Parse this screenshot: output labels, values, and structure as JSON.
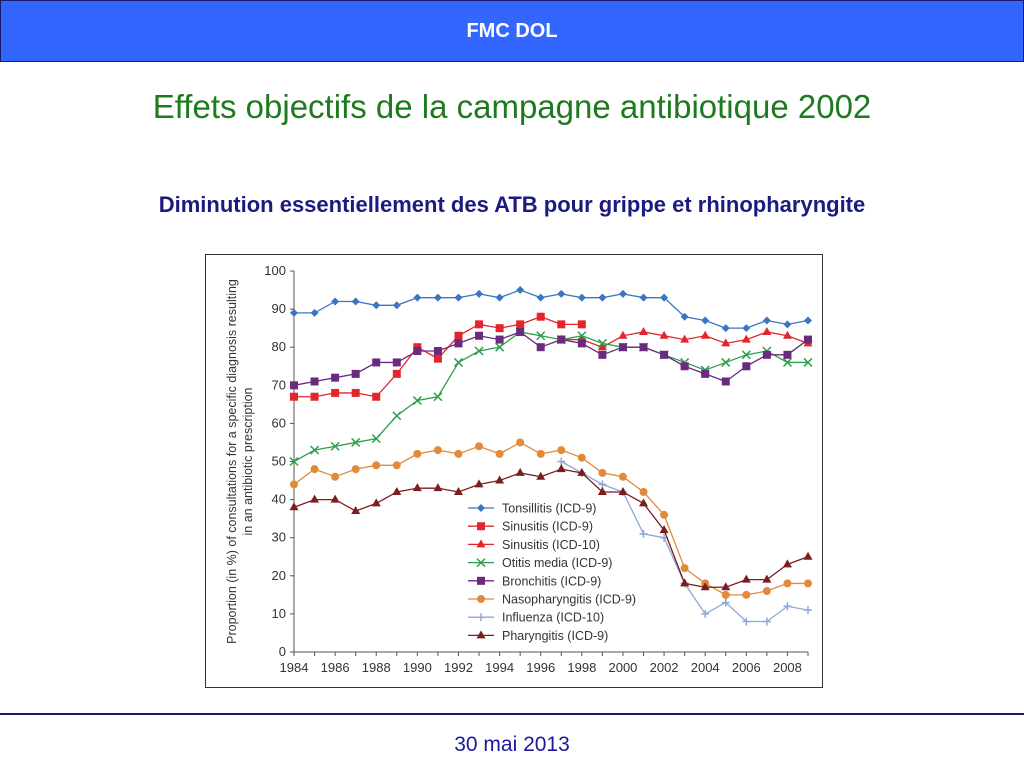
{
  "header": {
    "title": "FMC DOL"
  },
  "slide": {
    "title": "Effets objectifs de la campagne antibiotique 2002",
    "subtitle": "Diminution essentiellement des ATB pour grippe et rhinopharyngite"
  },
  "footer": {
    "date": "30 mai 2013"
  },
  "colors": {
    "header_bg": "#3366ff",
    "title": "#1e7a1e",
    "subtitle": "#1a1a80",
    "footer": "#1a1a99"
  },
  "chart_data": {
    "type": "line",
    "ylabel": "Proportion (in %) of consultations for a specific diagnosis resulting in an antibiotic prescription",
    "xlabel": "",
    "ylim": [
      0,
      100
    ],
    "xlim": [
      1984,
      2009
    ],
    "yticks": [
      0,
      10,
      20,
      30,
      40,
      50,
      60,
      70,
      80,
      90,
      100
    ],
    "xticks": [
      1984,
      1986,
      1988,
      1990,
      1992,
      1994,
      1996,
      1998,
      2000,
      2002,
      2004,
      2006,
      2008
    ],
    "grid": false,
    "legend": "bottom-center",
    "series": [
      {
        "name": "Tonsillitis (ICD-9)",
        "color": "#3a77c0",
        "marker": "diamond",
        "x": [
          1984,
          1985,
          1986,
          1987,
          1988,
          1989,
          1990,
          1991,
          1992,
          1993,
          1994,
          1995,
          1996,
          1997,
          1998,
          1999,
          2000,
          2001,
          2002,
          2003,
          2004,
          2005,
          2006,
          2007,
          2008,
          2009
        ],
        "y": [
          89,
          89,
          92,
          92,
          91,
          91,
          93,
          93,
          93,
          94,
          93,
          95,
          93,
          94,
          93,
          93,
          94,
          93,
          93,
          88,
          87,
          85,
          85,
          87,
          86,
          87
        ]
      },
      {
        "name": "Sinusitis (ICD-9)",
        "color": "#e3262c",
        "marker": "square",
        "x": [
          1984,
          1985,
          1986,
          1987,
          1988,
          1989,
          1990,
          1991,
          1992,
          1993,
          1994,
          1995,
          1996,
          1997,
          1998
        ],
        "y": [
          67,
          67,
          68,
          68,
          67,
          73,
          80,
          77,
          83,
          86,
          85,
          86,
          88,
          86,
          86
        ]
      },
      {
        "name": "Sinusitis (ICD-10)",
        "color": "#e3262c",
        "marker": "triangle",
        "x": [
          1997,
          1998,
          1999,
          2000,
          2001,
          2002,
          2003,
          2004,
          2005,
          2006,
          2007,
          2008,
          2009
        ],
        "y": [
          82,
          82,
          80,
          83,
          84,
          83,
          82,
          83,
          81,
          82,
          84,
          83,
          81
        ]
      },
      {
        "name": "Otitis media (ICD-9)",
        "color": "#2e9e4e",
        "marker": "x",
        "x": [
          1984,
          1985,
          1986,
          1987,
          1988,
          1989,
          1990,
          1991,
          1992,
          1993,
          1994,
          1995,
          1996,
          1997,
          1998,
          1999,
          2000,
          2001,
          2002,
          2003,
          2004,
          2005,
          2006,
          2007,
          2008,
          2009
        ],
        "y": [
          50,
          53,
          54,
          55,
          56,
          62,
          66,
          67,
          76,
          79,
          80,
          84,
          83,
          82,
          83,
          81,
          80,
          80,
          78,
          76,
          74,
          76,
          78,
          79,
          76,
          76
        ]
      },
      {
        "name": "Bronchitis (ICD-9)",
        "color": "#6a2a7e",
        "marker": "square",
        "x": [
          1984,
          1985,
          1986,
          1987,
          1988,
          1989,
          1990,
          1991,
          1992,
          1993,
          1994,
          1995,
          1996,
          1997,
          1998,
          1999,
          2000,
          2001,
          2002,
          2003,
          2004,
          2005,
          2006,
          2007,
          2008,
          2009
        ],
        "y": [
          70,
          71,
          72,
          73,
          76,
          76,
          79,
          79,
          81,
          83,
          82,
          84,
          80,
          82,
          81,
          78,
          80,
          80,
          78,
          75,
          73,
          71,
          75,
          78,
          78,
          82
        ]
      },
      {
        "name": "Nasopharyngitis (ICD-9)",
        "color": "#e38a3a",
        "marker": "circle",
        "x": [
          1984,
          1985,
          1986,
          1987,
          1988,
          1989,
          1990,
          1991,
          1992,
          1993,
          1994,
          1995,
          1996,
          1997,
          1998,
          1999,
          2000,
          2001,
          2002,
          2003,
          2004,
          2005,
          2006,
          2007,
          2008,
          2009
        ],
        "y": [
          44,
          48,
          46,
          48,
          49,
          49,
          52,
          53,
          52,
          54,
          52,
          55,
          52,
          53,
          51,
          47,
          46,
          42,
          36,
          22,
          18,
          15,
          15,
          16,
          18,
          18
        ]
      },
      {
        "name": "Influenza (ICD-10)",
        "color": "#8fa8d8",
        "marker": "plus",
        "x": [
          1997,
          1998,
          1999,
          2000,
          2001,
          2002,
          2003,
          2004,
          2005,
          2006,
          2007,
          2008,
          2009
        ],
        "y": [
          50,
          47,
          44,
          42,
          31,
          30,
          18,
          10,
          13,
          8,
          8,
          12,
          11
        ]
      },
      {
        "name": "Pharyngitis (ICD-9)",
        "color": "#7a1e1e",
        "marker": "triangle",
        "x": [
          1984,
          1985,
          1986,
          1987,
          1988,
          1989,
          1990,
          1991,
          1992,
          1993,
          1994,
          1995,
          1996,
          1997,
          1998,
          1999,
          2000,
          2001,
          2002,
          2003,
          2004,
          2005,
          2006,
          2007,
          2008,
          2009
        ],
        "y": [
          38,
          40,
          40,
          37,
          39,
          42,
          43,
          43,
          42,
          44,
          45,
          47,
          46,
          48,
          47,
          42,
          42,
          39,
          32,
          18,
          17,
          17,
          19,
          19,
          23,
          25
        ]
      }
    ]
  }
}
